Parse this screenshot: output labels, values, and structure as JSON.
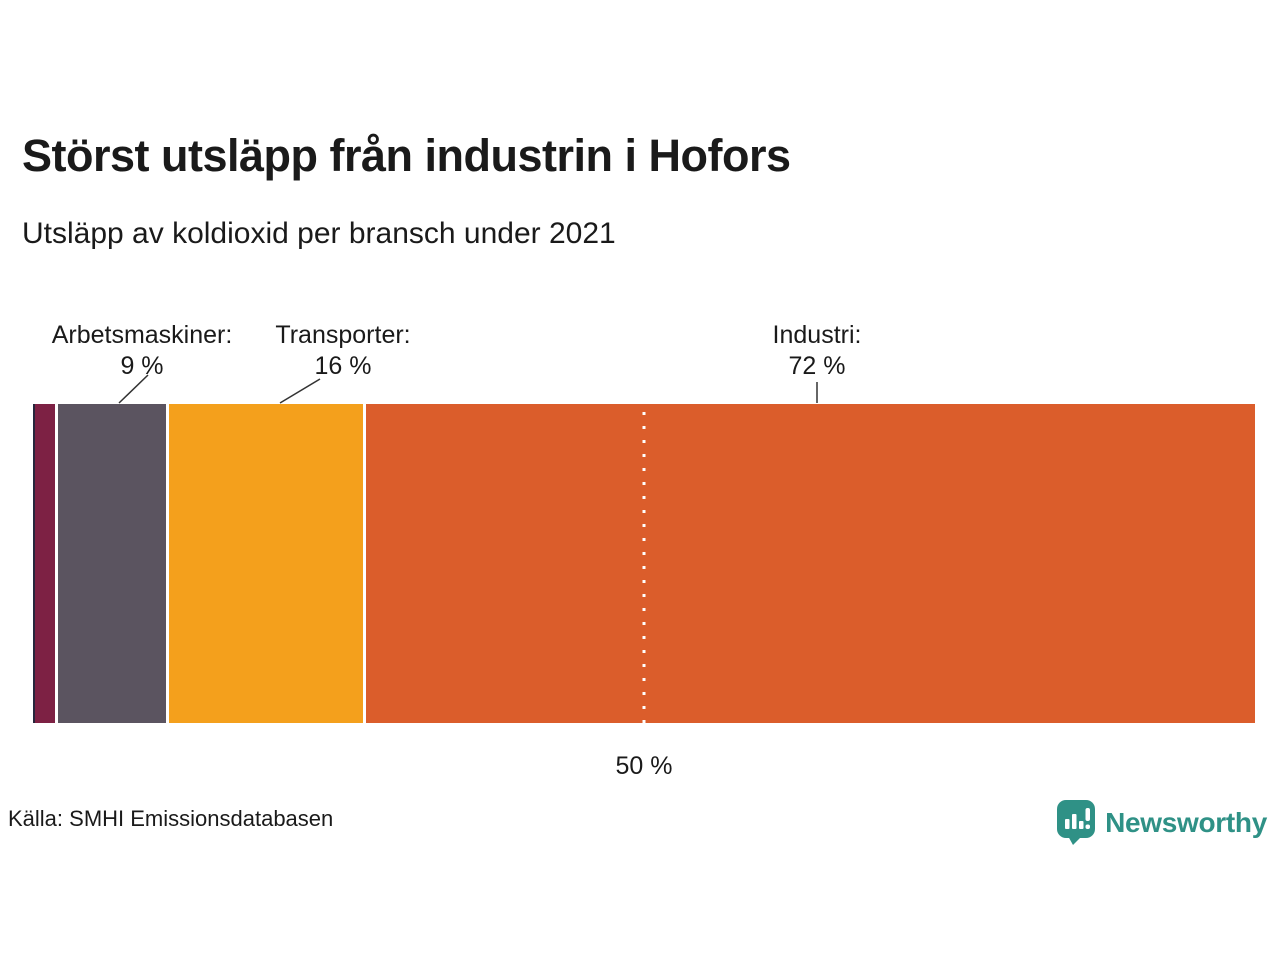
{
  "title": "Störst utsläpp från industrin i Hofors",
  "subtitle": "Utsläpp av koldioxid per bransch under 2021",
  "source": "Källa: SMHI Emissionsdatabasen",
  "brand": {
    "name": "Newsworthy",
    "color": "#2f9186"
  },
  "chart_data": {
    "type": "bar",
    "subtype": "stacked-horizontal",
    "unit": "%",
    "axis_range": [
      0,
      100
    ],
    "segments": [
      {
        "name": null,
        "value": 0.2,
        "color": "#26263c",
        "label": null,
        "value_label": null
      },
      {
        "name": null,
        "value": 1.8,
        "color": "#7d2144",
        "label": null,
        "value_label": null
      },
      {
        "name": "Arbetsmaskiner",
        "value": 9,
        "color": "#5b5460",
        "label": "Arbetsmaskiner:",
        "value_label": "9 %"
      },
      {
        "name": "Transporter",
        "value": 16,
        "color": "#f4a01c",
        "label": "Transporter:",
        "value_label": "16 %"
      },
      {
        "name": "Industri",
        "value": 72,
        "color": "#db5d2b",
        "label": "Industri:",
        "value_label": "72 %"
      }
    ],
    "reference_line": {
      "position": 50,
      "label": "50 %"
    }
  }
}
